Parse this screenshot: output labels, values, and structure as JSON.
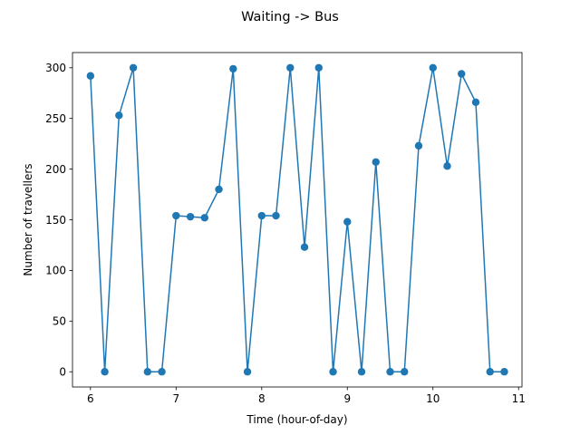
{
  "chart_data": {
    "type": "line",
    "title": "Waiting -> Bus",
    "xlabel": "Time (hour-of-day)",
    "ylabel": "Number of travellers",
    "xlim": [
      5.79,
      11.04
    ],
    "ylim": [
      -15,
      315
    ],
    "xticks": [
      6,
      7,
      8,
      9,
      10,
      11
    ],
    "yticks": [
      0,
      50,
      100,
      150,
      200,
      250,
      300
    ],
    "grid": false,
    "markers": true,
    "color": "#1f77b4",
    "series": [
      {
        "x": [
          6.0,
          6.1667,
          6.3333,
          6.5,
          6.6667,
          6.8333,
          7.0,
          7.1667,
          7.3333,
          7.5,
          7.6667,
          7.8333,
          8.0,
          8.1667,
          8.3333,
          8.5,
          8.6667,
          8.8333,
          9.0,
          9.1667,
          9.3333,
          9.5,
          9.6667,
          9.8333,
          10.0,
          10.1667,
          10.3333,
          10.5,
          10.6667,
          10.8333
        ],
        "values": [
          292,
          0,
          253,
          300,
          0,
          0,
          154,
          153,
          152,
          180,
          299,
          0,
          154,
          154,
          300,
          123,
          300,
          0,
          148,
          0,
          207,
          0,
          0,
          223,
          300,
          203,
          294,
          266,
          0,
          0
        ]
      }
    ]
  }
}
